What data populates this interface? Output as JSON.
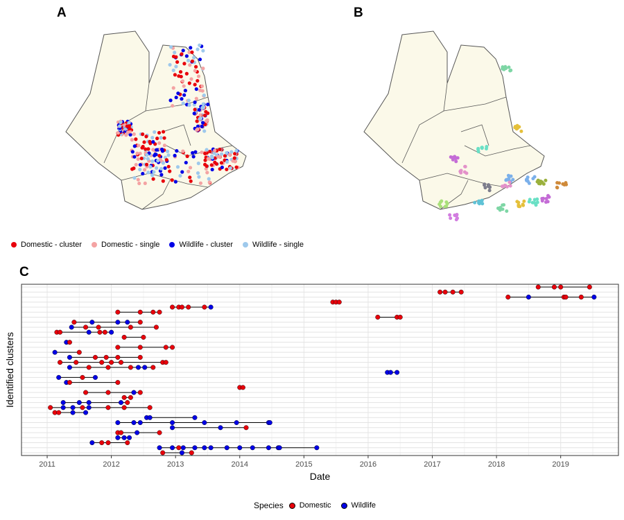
{
  "panels": {
    "a": "A",
    "b": "B",
    "c": "C"
  },
  "map_legend": [
    {
      "label": "Domestic - cluster",
      "color": "#e8000b"
    },
    {
      "label": "Domestic - single",
      "color": "#f4a3a3"
    },
    {
      "label": "Wildlife - cluster",
      "color": "#0000e6"
    },
    {
      "label": "Wildlife - single",
      "color": "#9ec9ec"
    }
  ],
  "chart_data": {
    "type": "scatter",
    "xlabel": "Date",
    "ylabel": "Identified clusters",
    "xticks": [
      "2011",
      "2012",
      "2013",
      "2014",
      "2015",
      "2016",
      "2017",
      "2018",
      "2019"
    ],
    "xlim": [
      2010.6,
      2019.9
    ],
    "grid": true,
    "legend": {
      "title": "Species",
      "position": "bottom",
      "entries": [
        {
          "name": "Domestic",
          "color": "#e8000b"
        },
        {
          "name": "Wildlife",
          "color": "#0000e6"
        }
      ]
    },
    "clusters": [
      {
        "points": [
          [
            2018.65,
            "D"
          ],
          [
            2018.9,
            "D"
          ],
          [
            2019.0,
            "D"
          ],
          [
            2019.45,
            "D"
          ]
        ]
      },
      {
        "points": [
          [
            2017.12,
            "D"
          ],
          [
            2017.2,
            "D"
          ],
          [
            2017.32,
            "D"
          ],
          [
            2017.45,
            "D"
          ]
        ]
      },
      {
        "points": [
          [
            2018.18,
            "D"
          ],
          [
            2018.5,
            "W"
          ],
          [
            2019.05,
            "D"
          ],
          [
            2019.08,
            "D"
          ],
          [
            2019.32,
            "D"
          ],
          [
            2019.52,
            "W"
          ]
        ]
      },
      {
        "points": [
          [
            2015.45,
            "D"
          ],
          [
            2015.5,
            "D"
          ],
          [
            2015.55,
            "D"
          ]
        ]
      },
      {
        "points": [
          [
            2012.95,
            "D"
          ],
          [
            2013.05,
            "D"
          ],
          [
            2013.1,
            "D"
          ],
          [
            2013.2,
            "D"
          ],
          [
            2013.45,
            "D"
          ],
          [
            2013.55,
            "W"
          ]
        ]
      },
      {
        "points": [
          [
            2012.1,
            "D"
          ],
          [
            2012.45,
            "D"
          ],
          [
            2012.65,
            "D"
          ],
          [
            2012.75,
            "D"
          ]
        ]
      },
      {
        "points": [
          [
            2016.15,
            "D"
          ],
          [
            2016.45,
            "D"
          ],
          [
            2016.5,
            "D"
          ]
        ]
      },
      {
        "points": [
          [
            2011.42,
            "D"
          ],
          [
            2011.7,
            "W"
          ],
          [
            2012.1,
            "W"
          ],
          [
            2012.25,
            "W"
          ],
          [
            2012.45,
            "D"
          ]
        ]
      },
      {
        "points": [
          [
            2011.38,
            "W"
          ],
          [
            2011.6,
            "D"
          ],
          [
            2011.8,
            "D"
          ],
          [
            2012.3,
            "D"
          ],
          [
            2012.7,
            "D"
          ]
        ]
      },
      {
        "points": [
          [
            2011.15,
            "D"
          ],
          [
            2011.2,
            "D"
          ],
          [
            2011.65,
            "W"
          ],
          [
            2011.82,
            "D"
          ],
          [
            2011.9,
            "D"
          ],
          [
            2012.0,
            "W"
          ]
        ]
      },
      {
        "points": [
          [
            2012.2,
            "D"
          ],
          [
            2012.5,
            "D"
          ]
        ]
      },
      {
        "points": [
          [
            2011.3,
            "W"
          ],
          [
            2011.35,
            "D"
          ]
        ]
      },
      {
        "points": [
          [
            2012.1,
            "D"
          ],
          [
            2012.45,
            "D"
          ],
          [
            2012.85,
            "D"
          ],
          [
            2012.95,
            "D"
          ]
        ]
      },
      {
        "points": [
          [
            2011.12,
            "W"
          ],
          [
            2011.5,
            "D"
          ]
        ]
      },
      {
        "points": [
          [
            2011.35,
            "W"
          ],
          [
            2011.75,
            "D"
          ],
          [
            2011.92,
            "D"
          ],
          [
            2012.1,
            "D"
          ],
          [
            2012.45,
            "D"
          ]
        ]
      },
      {
        "points": [
          [
            2011.2,
            "D"
          ],
          [
            2011.45,
            "D"
          ],
          [
            2011.85,
            "D"
          ],
          [
            2012.0,
            "D"
          ],
          [
            2012.15,
            "D"
          ],
          [
            2012.8,
            "D"
          ],
          [
            2012.85,
            "D"
          ]
        ]
      },
      {
        "points": [
          [
            2011.35,
            "W"
          ],
          [
            2011.65,
            "D"
          ],
          [
            2011.95,
            "D"
          ],
          [
            2012.3,
            "D"
          ],
          [
            2012.42,
            "W"
          ],
          [
            2012.52,
            "W"
          ],
          [
            2012.65,
            "D"
          ]
        ]
      },
      {
        "points": [
          [
            2016.3,
            "W"
          ],
          [
            2016.35,
            "W"
          ],
          [
            2016.45,
            "W"
          ]
        ]
      },
      {
        "points": [
          [
            2011.18,
            "W"
          ],
          [
            2011.55,
            "D"
          ],
          [
            2011.75,
            "W"
          ]
        ]
      },
      {
        "points": [
          [
            2011.3,
            "W"
          ],
          [
            2011.35,
            "D"
          ],
          [
            2012.1,
            "D"
          ]
        ]
      },
      {
        "points": [
          [
            2014.0,
            "D"
          ],
          [
            2014.05,
            "D"
          ]
        ]
      },
      {
        "points": [
          [
            2011.6,
            "D"
          ],
          [
            2011.95,
            "D"
          ],
          [
            2012.35,
            "W"
          ],
          [
            2012.45,
            "D"
          ]
        ]
      },
      {
        "points": [
          [
            2012.2,
            "D"
          ],
          [
            2012.3,
            "D"
          ]
        ]
      },
      {
        "points": [
          [
            2011.25,
            "W"
          ],
          [
            2011.5,
            "W"
          ],
          [
            2011.65,
            "W"
          ],
          [
            2012.15,
            "W"
          ],
          [
            2012.25,
            "D"
          ]
        ]
      },
      {
        "points": [
          [
            2011.05,
            "D"
          ],
          [
            2011.25,
            "W"
          ],
          [
            2011.4,
            "W"
          ],
          [
            2011.55,
            "D"
          ],
          [
            2011.65,
            "W"
          ],
          [
            2011.95,
            "D"
          ],
          [
            2012.2,
            "D"
          ],
          [
            2012.6,
            "D"
          ]
        ]
      },
      {
        "points": [
          [
            2011.12,
            "D"
          ],
          [
            2011.18,
            "D"
          ],
          [
            2011.4,
            "W"
          ],
          [
            2011.6,
            "W"
          ]
        ]
      },
      {
        "points": [
          [
            2012.55,
            "W"
          ],
          [
            2012.6,
            "W"
          ],
          [
            2013.3,
            "W"
          ]
        ]
      },
      {
        "points": [
          [
            2012.1,
            "W"
          ],
          [
            2012.35,
            "W"
          ],
          [
            2012.45,
            "W"
          ],
          [
            2012.95,
            "W"
          ],
          [
            2013.45,
            "W"
          ],
          [
            2013.95,
            "W"
          ],
          [
            2014.45,
            "W"
          ],
          [
            2014.47,
            "W"
          ]
        ]
      },
      {
        "points": [
          [
            2012.95,
            "W"
          ],
          [
            2013.7,
            "W"
          ],
          [
            2014.1,
            "D"
          ]
        ]
      },
      {
        "points": [
          [
            2012.1,
            "D"
          ],
          [
            2012.15,
            "D"
          ],
          [
            2012.4,
            "W"
          ],
          [
            2012.75,
            "D"
          ]
        ]
      },
      {
        "points": [
          [
            2012.1,
            "W"
          ],
          [
            2012.2,
            "W"
          ],
          [
            2012.28,
            "W"
          ]
        ]
      },
      {
        "points": [
          [
            2011.7,
            "W"
          ],
          [
            2011.85,
            "D"
          ],
          [
            2011.95,
            "D"
          ],
          [
            2012.25,
            "D"
          ]
        ]
      },
      {
        "points": [
          [
            2012.75,
            "W"
          ],
          [
            2012.95,
            "W"
          ],
          [
            2013.05,
            "D"
          ],
          [
            2013.12,
            "W"
          ],
          [
            2013.3,
            "W"
          ],
          [
            2013.45,
            "W"
          ],
          [
            2013.55,
            "W"
          ],
          [
            2013.8,
            "W"
          ],
          [
            2014.0,
            "W"
          ],
          [
            2014.2,
            "W"
          ],
          [
            2014.45,
            "W"
          ],
          [
            2014.6,
            "W"
          ],
          [
            2014.62,
            "W"
          ],
          [
            2015.2,
            "W"
          ]
        ]
      },
      {
        "points": [
          [
            2012.8,
            "D"
          ],
          [
            2013.1,
            "W"
          ],
          [
            2013.25,
            "D"
          ]
        ]
      }
    ]
  }
}
